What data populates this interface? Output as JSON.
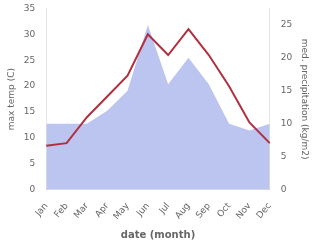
{
  "chart_data": {
    "type": "line",
    "xlabel": "date (month)",
    "ylabel": "max temp (C)",
    "y2label": "med. precipitation (kg/m2)",
    "categories": [
      "Jan",
      "Feb",
      "Mar",
      "Apr",
      "May",
      "Jun",
      "Jul",
      "Aug",
      "Sep",
      "Oct",
      "Nov",
      "Dec"
    ],
    "series": [
      {
        "type": "area",
        "axis": "y2",
        "color": "#bcc4f0",
        "values": [
          10.0,
          10.0,
          10.0,
          12.0,
          15.0,
          25.0,
          16.0,
          20.0,
          16.0,
          10.0,
          9.0,
          10.0
        ]
      },
      {
        "type": "line",
        "axis": "y",
        "color": "#b03040",
        "values": [
          8.5,
          9.0,
          14.0,
          18.0,
          22.0,
          30.0,
          26.0,
          31.0,
          26.0,
          20.0,
          13.0,
          9.0
        ]
      }
    ],
    "ylim": [
      0,
      35
    ],
    "yticks": [
      0,
      5,
      10,
      15,
      20,
      25,
      30,
      35
    ],
    "y2lim": [
      0,
      27.5
    ],
    "y2ticks": [
      0,
      5,
      10,
      15,
      20,
      25
    ],
    "grid": false
  }
}
